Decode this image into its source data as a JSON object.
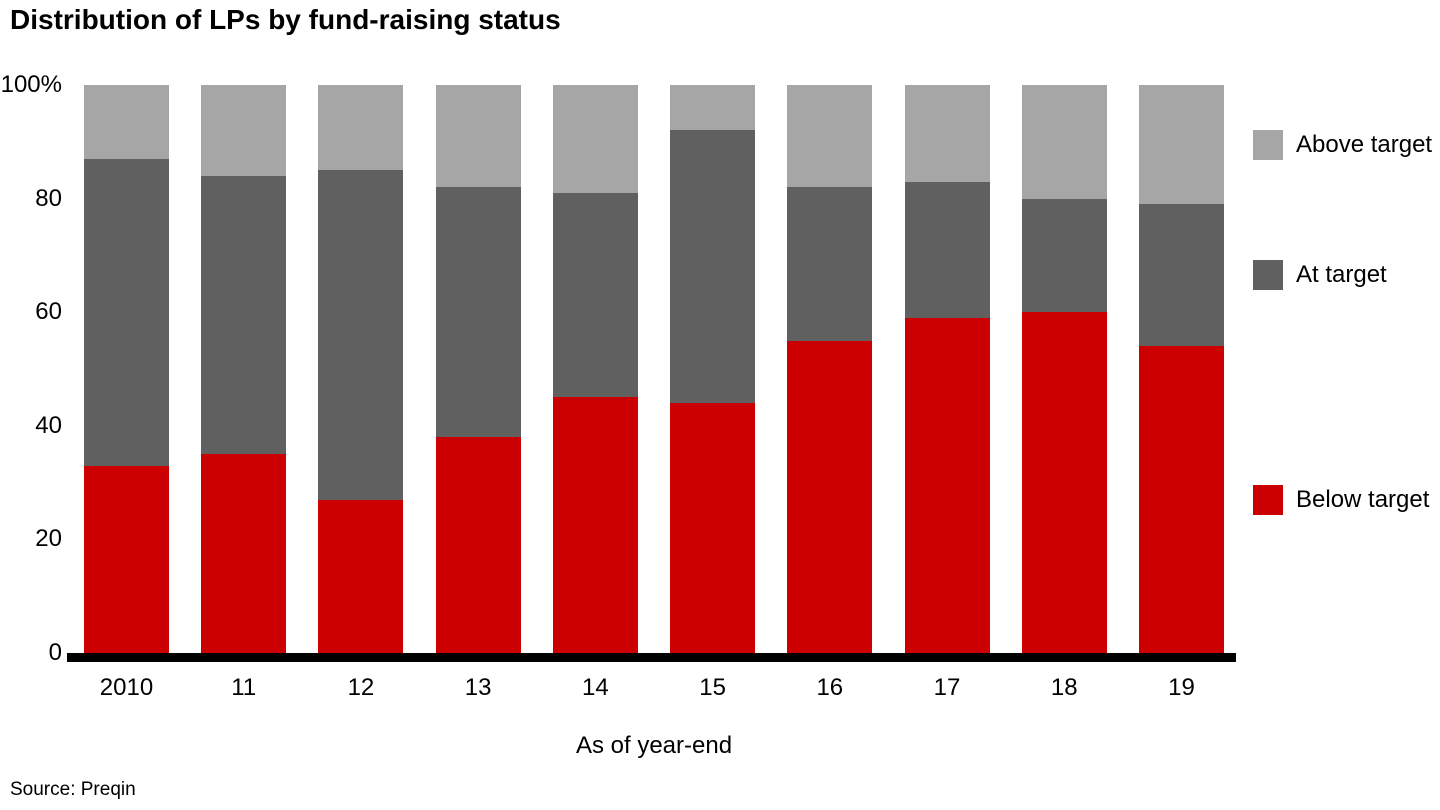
{
  "title": "Distribution of LPs by fund-raising status",
  "source_note": "Source: Preqin",
  "colors": {
    "below_target": "#cc0000",
    "at_target": "#606060",
    "above_target": "#a6a6a6",
    "axis": "#000000",
    "text": "#000000",
    "background": "#ffffff"
  },
  "chart_data": {
    "type": "bar",
    "stacked": true,
    "title": "Distribution of LPs by fund-raising status",
    "categories": [
      "2010",
      "11",
      "12",
      "13",
      "14",
      "15",
      "16",
      "17",
      "18",
      "19"
    ],
    "series": [
      {
        "name": "Below target",
        "color": "#cc0000",
        "values": [
          33,
          35,
          27,
          38,
          45,
          44,
          55,
          59,
          60,
          54
        ]
      },
      {
        "name": "At target",
        "color": "#606060",
        "values": [
          54,
          49,
          58,
          44,
          36,
          48,
          27,
          24,
          20,
          25
        ]
      },
      {
        "name": "Above target",
        "color": "#a6a6a6",
        "values": [
          13,
          16,
          15,
          18,
          19,
          8,
          18,
          17,
          20,
          21
        ]
      }
    ],
    "xlabel": "As of year-end",
    "ylabel": "",
    "ylim": [
      0,
      100
    ],
    "y_ticks": [
      {
        "label": "100%",
        "value": 100
      },
      {
        "label": "80",
        "value": 80
      },
      {
        "label": "60",
        "value": 60
      },
      {
        "label": "40",
        "value": 40
      },
      {
        "label": "20",
        "value": 20
      },
      {
        "label": "0",
        "value": 0
      }
    ],
    "grid": false,
    "legend_position": "right",
    "legend_order": [
      "Above target",
      "At target",
      "Below target"
    ]
  }
}
